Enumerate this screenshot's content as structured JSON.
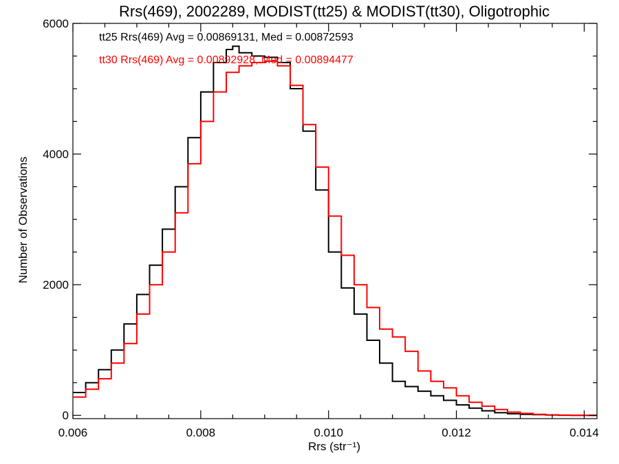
{
  "chart_data": {
    "type": "line",
    "step": true,
    "title": "Rrs(469), 2002289, MODIST(tt25) & MODIST(tt30), Oligotrophic",
    "xlabel": "Rrs (str⁻¹)",
    "ylabel": "Number of Observations",
    "xlim": [
      0.006,
      0.0142
    ],
    "ylim": [
      -50,
      6000
    ],
    "xticks": [
      "0.006",
      "0.008",
      "0.010",
      "0.012",
      "0.014"
    ],
    "yticks": [
      "0",
      "2000",
      "4000",
      "6000"
    ],
    "grid": false,
    "annotations": [
      {
        "text": "tt25 Rrs(469) Avg = 0.00869131, Med = 0.00872593",
        "color": "#000000"
      },
      {
        "text": "tt30 Rrs(469) Avg = 0.00892928, Med = 0.00894477",
        "color": "#ff0000"
      }
    ],
    "series": [
      {
        "color": "#000000",
        "x": [
          0.006,
          0.0062,
          0.0064,
          0.0066,
          0.0068,
          0.007,
          0.0072,
          0.0074,
          0.0076,
          0.0078,
          0.008,
          0.0082,
          0.0084,
          0.0085,
          0.0086,
          0.0088,
          0.009,
          0.0092,
          0.0094,
          0.0096,
          0.0098,
          0.01,
          0.0102,
          0.0104,
          0.0106,
          0.0108,
          0.011,
          0.0112,
          0.0114,
          0.0116,
          0.0118,
          0.012,
          0.0122,
          0.0124,
          0.0126,
          0.0128,
          0.013,
          0.0132,
          0.0134,
          0.0136,
          0.0138,
          0.014,
          0.0142
        ],
        "values": [
          350,
          500,
          700,
          1000,
          1400,
          1850,
          2300,
          2850,
          3500,
          4250,
          4950,
          5400,
          5600,
          5650,
          5550,
          5500,
          5480,
          5400,
          5000,
          4350,
          3450,
          2500,
          1950,
          1550,
          1150,
          800,
          520,
          440,
          370,
          300,
          230,
          160,
          110,
          70,
          40,
          25,
          15,
          10,
          5,
          2,
          1,
          1,
          0
        ]
      },
      {
        "color": "#ff0000",
        "x": [
          0.006,
          0.0062,
          0.0064,
          0.0066,
          0.0068,
          0.007,
          0.0072,
          0.0074,
          0.0076,
          0.0078,
          0.008,
          0.0082,
          0.0084,
          0.0086,
          0.0088,
          0.009,
          0.0092,
          0.0094,
          0.0096,
          0.0098,
          0.01,
          0.0102,
          0.0104,
          0.0106,
          0.0108,
          0.011,
          0.0112,
          0.0114,
          0.0116,
          0.0118,
          0.012,
          0.0122,
          0.0124,
          0.0126,
          0.0128,
          0.013,
          0.0132,
          0.0134,
          0.0136,
          0.0138,
          0.014,
          0.0142
        ],
        "values": [
          280,
          400,
          560,
          800,
          1100,
          1550,
          2000,
          2500,
          3100,
          3850,
          4500,
          4950,
          5250,
          5350,
          5400,
          5420,
          5350,
          5050,
          4450,
          3800,
          3050,
          2450,
          2000,
          1650,
          1320,
          1200,
          980,
          680,
          520,
          420,
          300,
          200,
          140,
          90,
          50,
          30,
          15,
          8,
          4,
          2,
          1,
          0
        ]
      }
    ]
  }
}
